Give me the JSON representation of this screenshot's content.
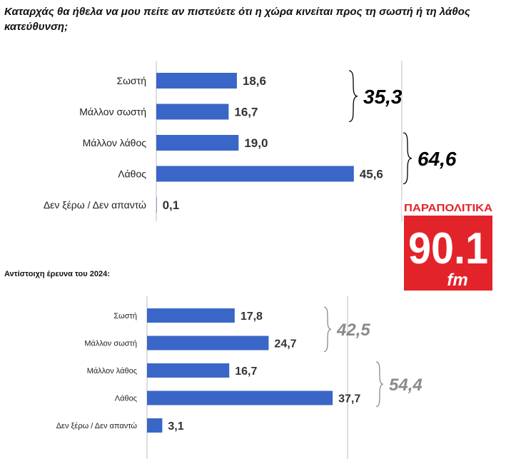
{
  "question": "Καταρχάς θα ήθελα να μου πείτε αν πιστεύετε ότι η χώρα κινείται προς τη σωστή ή τη λάθος κατεύθυνση;",
  "subtitle_2024": "Αντίστοιχη έρευνα του 2024:",
  "logo": {
    "top_text": "ΠΑΡΑΠΟΛΙΤΙΚΑ",
    "number": "90.1",
    "unit": "fm",
    "colors": {
      "red": "#e3232a",
      "white": "#ffffff"
    }
  },
  "colors": {
    "bar_current": "#3a66c8",
    "bar_2024_light": "#c9d6ef",
    "bar_2024_dark": "#6f8fd4",
    "group_current": "#000000",
    "group_2024": "#8a8a8a",
    "axis": "#bdbdbd"
  },
  "chart_data": [
    {
      "type": "bar",
      "orientation": "horizontal",
      "categories": [
        "Σωστή",
        "Μάλλον σωστή",
        "Μάλλον λάθος",
        "Λάθος",
        "Δεν ξέρω / Δεν απαντώ"
      ],
      "values": [
        18.6,
        16.7,
        19.0,
        45.6,
        0.1
      ],
      "value_labels": [
        "18,6",
        "16,7",
        "19,0",
        "45,6",
        "0,1"
      ],
      "xlim": [
        0,
        60
      ],
      "groups": [
        {
          "label": "35,3",
          "from": 0,
          "to": 1
        },
        {
          "label": "64,6",
          "from": 2,
          "to": 3
        }
      ]
    },
    {
      "type": "bar",
      "orientation": "horizontal",
      "categories": [
        "Σωστή",
        "Μάλλον σωστή",
        "Μάλλον λάθος",
        "Λάθος",
        "Δεν ξέρω / Δεν απαντώ"
      ],
      "values": [
        17.8,
        24.7,
        16.7,
        37.7,
        3.1
      ],
      "value_labels": [
        "17,8",
        "24,7",
        "16,7",
        "37,7",
        "3,1"
      ],
      "xlim": [
        0,
        60
      ],
      "groups": [
        {
          "label": "42,5",
          "from": 0,
          "to": 1
        },
        {
          "label": "54,4",
          "from": 2,
          "to": 3
        }
      ]
    }
  ]
}
